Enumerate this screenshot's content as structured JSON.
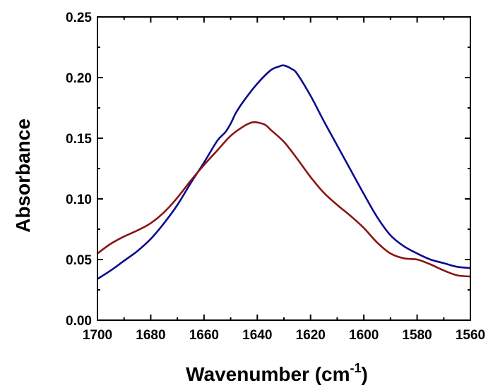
{
  "chart_data": {
    "type": "line",
    "xlabel": "Wavenumber (cm",
    "xlabel_superscript": "-1",
    "xlabel_close": ")",
    "ylabel": "Absorbance",
    "xlim": [
      1700,
      1560
    ],
    "ylim": [
      0.0,
      0.25
    ],
    "x_reversed": true,
    "grid": false,
    "x_ticks": [
      1700,
      1680,
      1660,
      1640,
      1620,
      1600,
      1580,
      1560
    ],
    "x_tick_labels": [
      "1700",
      "1680",
      "1660",
      "1640",
      "1620",
      "1600",
      "1580",
      "1560"
    ],
    "y_ticks": [
      0.0,
      0.05,
      0.1,
      0.15,
      0.2,
      0.25
    ],
    "y_tick_labels": [
      "0.00",
      "0.05",
      "0.10",
      "0.15",
      "0.20",
      "0.25"
    ],
    "series": [
      {
        "color": "#0d0d8c",
        "x": [
          1700,
          1695,
          1690,
          1685,
          1680,
          1675,
          1670,
          1665,
          1660,
          1655,
          1652,
          1650,
          1648,
          1645,
          1640,
          1635,
          1632,
          1630,
          1627,
          1625,
          1620,
          1615,
          1610,
          1605,
          1600,
          1595,
          1590,
          1585,
          1580,
          1575,
          1570,
          1565,
          1560
        ],
        "y": [
          0.034,
          0.041,
          0.049,
          0.057,
          0.067,
          0.08,
          0.095,
          0.113,
          0.13,
          0.148,
          0.155,
          0.162,
          0.171,
          0.181,
          0.195,
          0.206,
          0.209,
          0.21,
          0.207,
          0.203,
          0.185,
          0.164,
          0.144,
          0.124,
          0.104,
          0.085,
          0.07,
          0.061,
          0.055,
          0.05,
          0.047,
          0.044,
          0.043
        ]
      },
      {
        "color": "#8b1414",
        "x": [
          1700,
          1695,
          1690,
          1685,
          1680,
          1675,
          1670,
          1665,
          1660,
          1655,
          1650,
          1645,
          1642,
          1640,
          1637,
          1635,
          1630,
          1625,
          1620,
          1615,
          1610,
          1605,
          1600,
          1595,
          1590,
          1585,
          1580,
          1575,
          1570,
          1565,
          1560
        ],
        "y": [
          0.055,
          0.063,
          0.069,
          0.074,
          0.08,
          0.089,
          0.101,
          0.115,
          0.128,
          0.14,
          0.152,
          0.16,
          0.163,
          0.163,
          0.161,
          0.157,
          0.147,
          0.133,
          0.118,
          0.105,
          0.095,
          0.086,
          0.076,
          0.064,
          0.055,
          0.051,
          0.05,
          0.046,
          0.041,
          0.037,
          0.036
        ]
      }
    ]
  }
}
